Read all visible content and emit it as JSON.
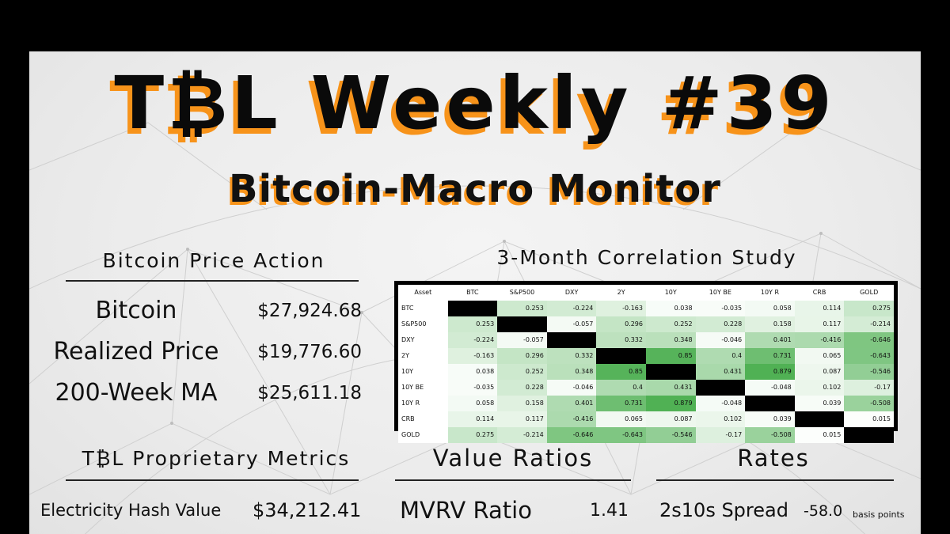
{
  "header": {
    "title": "T₿L Weekly #39",
    "subtitle": "Bitcoin-Macro Monitor"
  },
  "price_action": {
    "heading": "Bitcoin Price Action",
    "rows": [
      {
        "label": "Bitcoin",
        "value": "$27,924.68"
      },
      {
        "label": "Realized Price",
        "value": "$19,776.60"
      },
      {
        "label": "200-Week MA",
        "value": "$25,611.18"
      }
    ]
  },
  "correlation": {
    "heading": "3-Month Correlation Study",
    "corner": "Asset",
    "columns": [
      "BTC",
      "S&P500",
      "DXY",
      "2Y",
      "10Y",
      "10Y BE",
      "10Y R",
      "CRB",
      "GOLD"
    ],
    "rows": [
      {
        "asset": "BTC",
        "values": [
          null,
          "0.253",
          "-0.224",
          "-0.163",
          "0.038",
          "-0.035",
          "0.058",
          "0.114",
          "0.275"
        ]
      },
      {
        "asset": "S&P500",
        "values": [
          "0.253",
          null,
          "-0.057",
          "0.296",
          "0.252",
          "0.228",
          "0.158",
          "0.117",
          "-0.214"
        ]
      },
      {
        "asset": "DXY",
        "values": [
          "-0.224",
          "-0.057",
          null,
          "0.332",
          "0.348",
          "-0.046",
          "0.401",
          "-0.416",
          "-0.646"
        ]
      },
      {
        "asset": "2Y",
        "values": [
          "-0.163",
          "0.296",
          "0.332",
          null,
          "0.85",
          "0.4",
          "0.731",
          "0.065",
          "-0.643"
        ]
      },
      {
        "asset": "10Y",
        "values": [
          "0.038",
          "0.252",
          "0.348",
          "0.85",
          null,
          "0.431",
          "0.879",
          "0.087",
          "-0.546"
        ]
      },
      {
        "asset": "10Y BE",
        "values": [
          "-0.035",
          "0.228",
          "-0.046",
          "0.4",
          "0.431",
          null,
          "-0.048",
          "0.102",
          "-0.17"
        ]
      },
      {
        "asset": "10Y R",
        "values": [
          "0.058",
          "0.158",
          "0.401",
          "0.731",
          "0.879",
          "-0.048",
          null,
          "0.039",
          "-0.508"
        ]
      },
      {
        "asset": "CRB",
        "values": [
          "0.114",
          "0.117",
          "-0.416",
          "0.065",
          "0.087",
          "0.102",
          "0.039",
          null,
          "0.015"
        ]
      },
      {
        "asset": "GOLD",
        "values": [
          "0.275",
          "-0.214",
          "-0.646",
          "-0.643",
          "-0.546",
          "-0.17",
          "-0.508",
          "0.015",
          null
        ]
      }
    ]
  },
  "proprietary": {
    "heading": "T₿L Proprietary Metrics",
    "label": "Electricity Hash Value",
    "value": "$34,212.41"
  },
  "value_ratios": {
    "heading": "Value Ratios",
    "label": "MVRV Ratio",
    "value": "1.41"
  },
  "rates": {
    "heading": "Rates",
    "label": "2s10s Spread",
    "value": "-58.0",
    "unit": "basis points"
  },
  "colors": {
    "accent_orange": "#f7931a",
    "diagonal": "#000000",
    "green_strong": "#4caf50"
  }
}
